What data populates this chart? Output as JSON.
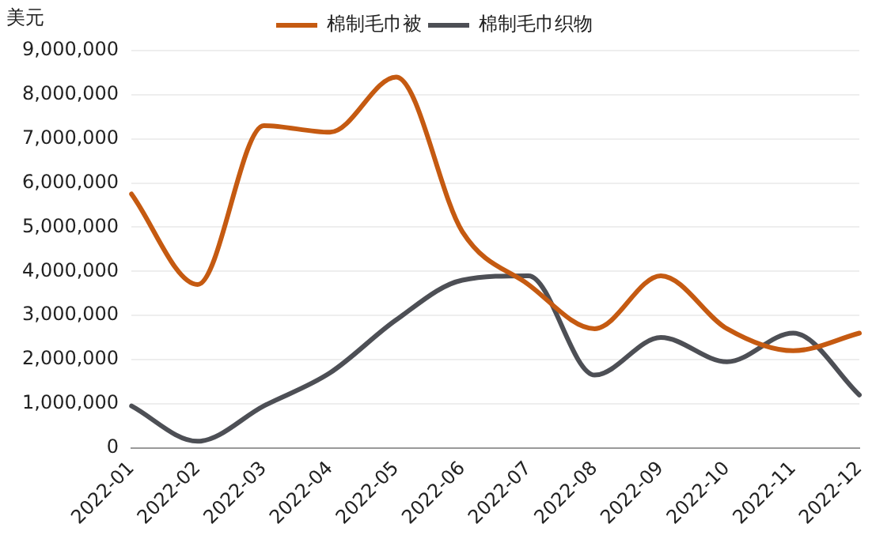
{
  "chart_data": {
    "type": "line",
    "ylabel": "美元",
    "categories": [
      "2022-01",
      "2022-02",
      "2022-03",
      "2022-04",
      "2022-05",
      "2022-06",
      "2022-07",
      "2022-08",
      "2022-09",
      "2022-10",
      "2022-11",
      "2022-12"
    ],
    "series": [
      {
        "name": "棉制毛巾被",
        "color": "#c55a11",
        "values": [
          5750000,
          3700000,
          7300000,
          7150000,
          8400000,
          4900000,
          3700000,
          2700000,
          3900000,
          2700000,
          2200000,
          2600000
        ]
      },
      {
        "name": "棉制毛巾织物",
        "color": "#4d4f55",
        "values": [
          950000,
          150000,
          950000,
          1700000,
          2900000,
          3800000,
          3900000,
          1650000,
          2500000,
          1950000,
          2600000,
          1200000
        ]
      }
    ],
    "ylim": [
      0,
      9000000
    ],
    "yticks": [
      {
        "value": 0,
        "label": "0"
      },
      {
        "value": 1000000,
        "label": "1,000,000"
      },
      {
        "value": 2000000,
        "label": "2,000,000"
      },
      {
        "value": 3000000,
        "label": "3,000,000"
      },
      {
        "value": 4000000,
        "label": "4,000,000"
      },
      {
        "value": 5000000,
        "label": "5,000,000"
      },
      {
        "value": 6000000,
        "label": "6,000,000"
      },
      {
        "value": 7000000,
        "label": "7,000,000"
      },
      {
        "value": 8000000,
        "label": "8,000,000"
      },
      {
        "value": 9000000,
        "label": "9,000,000"
      }
    ],
    "grid": "y",
    "legend": "top",
    "marker": "none",
    "line_style": "solid"
  }
}
